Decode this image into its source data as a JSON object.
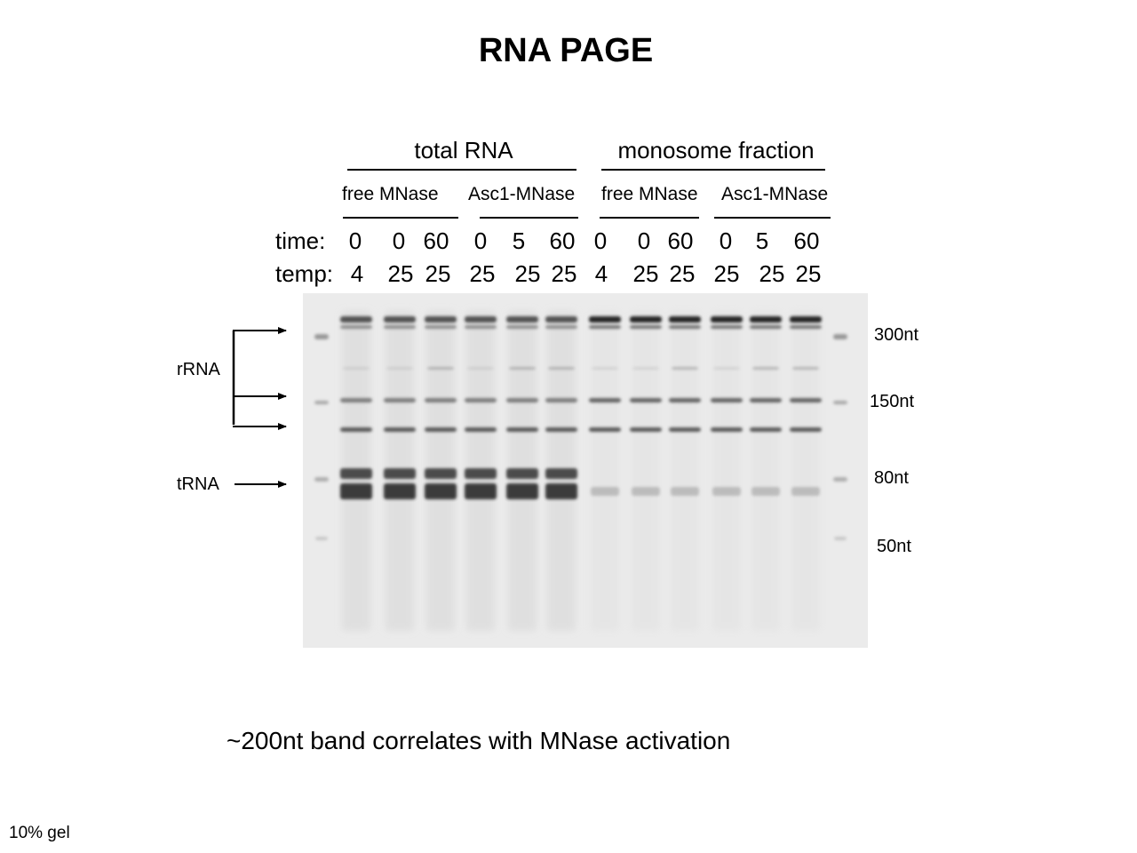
{
  "title": "RNA PAGE",
  "groups": [
    {
      "label": "total RNA"
    },
    {
      "label": "monosome fraction"
    }
  ],
  "conditions": [
    {
      "label": "free MNase"
    },
    {
      "label": "Asc1-MNase"
    },
    {
      "label": "free MNase"
    },
    {
      "label": "Asc1-MNase"
    }
  ],
  "row_labels": {
    "time": "time:",
    "temp": "temp:"
  },
  "lanes": [
    {
      "time": "0",
      "temp": "4"
    },
    {
      "time": "0",
      "temp": "25"
    },
    {
      "time": "60",
      "temp": "25"
    },
    {
      "time": "0",
      "temp": "25"
    },
    {
      "time": "5",
      "temp": "25"
    },
    {
      "time": "60",
      "temp": "25"
    },
    {
      "time": "0",
      "temp": "4"
    },
    {
      "time": "0",
      "temp": "25"
    },
    {
      "time": "60",
      "temp": "25"
    },
    {
      "time": "0",
      "temp": "25"
    },
    {
      "time": "5",
      "temp": "25"
    },
    {
      "time": "60",
      "temp": "25"
    }
  ],
  "markers": [
    {
      "label": "300nt"
    },
    {
      "label": "150nt"
    },
    {
      "label": "80nt"
    },
    {
      "label": "50nt"
    }
  ],
  "side_labels": {
    "rrna": "rRNA",
    "trna": "tRNA"
  },
  "caption": "~200nt band correlates with MNase activation",
  "footer": "10% gel"
}
